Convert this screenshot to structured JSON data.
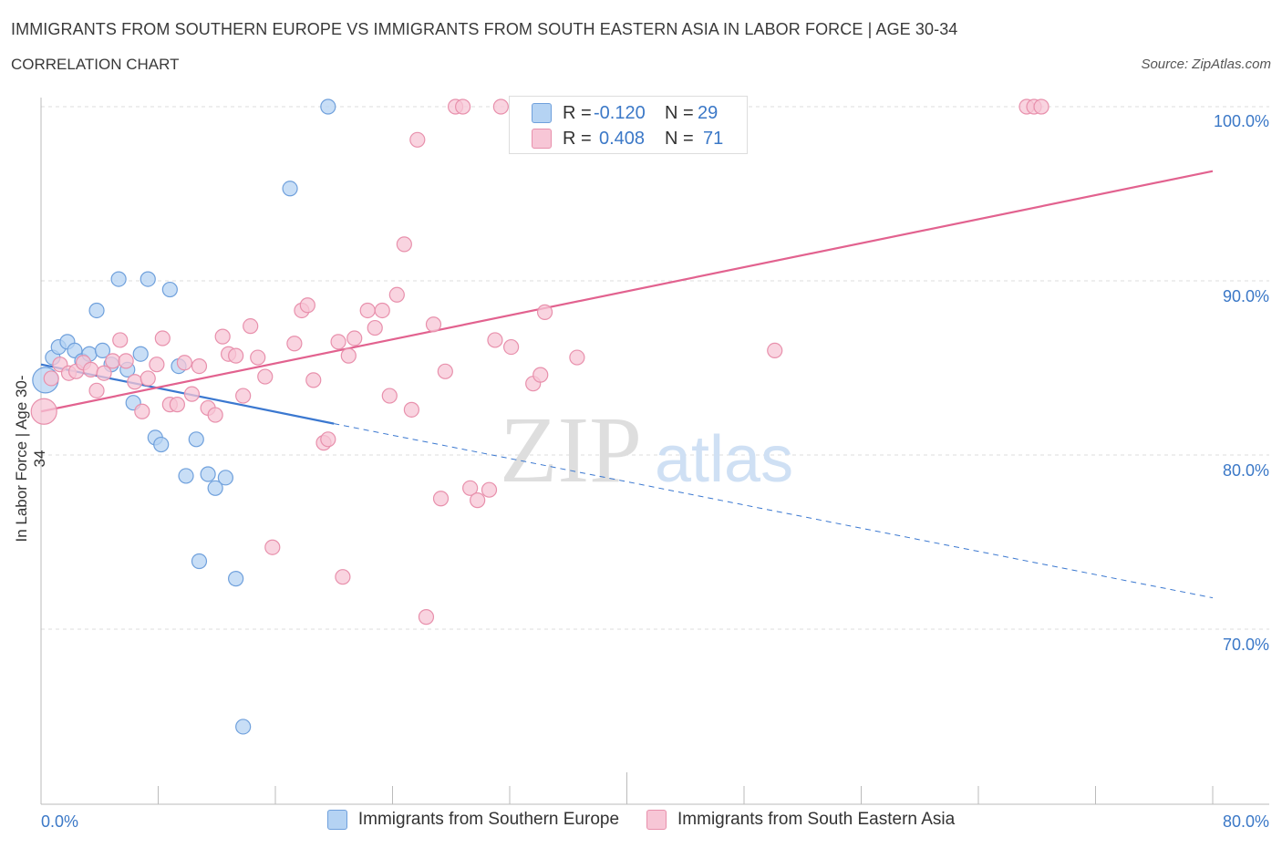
{
  "title": "IMMIGRANTS FROM SOUTHERN EUROPE VS IMMIGRANTS FROM SOUTH EASTERN ASIA IN LABOR FORCE | AGE 30-34",
  "subtitle": "CORRELATION CHART",
  "source": "Source: ZipAtlas.com",
  "watermark": {
    "zip": "ZIP",
    "atlas": "atlas"
  },
  "colors": {
    "blue_fill": "#b5d3f3",
    "blue_stroke": "#6fa0dc",
    "blue_line": "#3b78d0",
    "pink_fill": "#f7c6d6",
    "pink_stroke": "#e890ac",
    "pink_line": "#e2628f",
    "axis_text": "#3b78c7",
    "grid": "#dddddd"
  },
  "legend": {
    "r_label": "R =",
    "n_label": "N =",
    "blue": {
      "r": "-0.120",
      "n": "29"
    },
    "pink": {
      "r": "0.408",
      "n": "71"
    }
  },
  "bottom_legend": {
    "blue": "Immigrants from Southern Europe",
    "pink": "Immigrants from South Eastern Asia"
  },
  "chart_data": {
    "type": "scatter",
    "xlabel": "",
    "ylabel": "In Labor Force | Age 30-34",
    "x_tick_labels": [
      "0.0%",
      "80.0%"
    ],
    "y_tick_labels": [
      "100.0%",
      "90.0%",
      "80.0%",
      "70.0%"
    ],
    "xlim": [
      0,
      80
    ],
    "ylim": [
      60.5,
      101
    ],
    "y_ticks": [
      100,
      90,
      80,
      70
    ],
    "series": [
      {
        "name": "Immigrants from Southern Europe",
        "color": "blue",
        "trend": {
          "x0": 0,
          "y0": 85.2,
          "x1": 20,
          "y1": 81.8,
          "dash_to_x": 80,
          "dash_to_y": 71.8
        },
        "points": [
          [
            0.3,
            84.3
          ],
          [
            0.8,
            85.6
          ],
          [
            1.2,
            86.2
          ],
          [
            1.8,
            86.5
          ],
          [
            2.3,
            86.0
          ],
          [
            2.8,
            85.4
          ],
          [
            3.3,
            85.8
          ],
          [
            3.8,
            88.3
          ],
          [
            4.2,
            86.0
          ],
          [
            4.8,
            85.2
          ],
          [
            5.3,
            90.1
          ],
          [
            5.9,
            84.9
          ],
          [
            6.3,
            83.0
          ],
          [
            6.8,
            85.8
          ],
          [
            7.3,
            90.1
          ],
          [
            7.8,
            81.0
          ],
          [
            8.2,
            80.6
          ],
          [
            8.8,
            89.5
          ],
          [
            9.4,
            85.1
          ],
          [
            9.9,
            78.8
          ],
          [
            10.6,
            80.9
          ],
          [
            10.8,
            73.9
          ],
          [
            11.4,
            78.9
          ],
          [
            11.9,
            78.1
          ],
          [
            12.6,
            78.7
          ],
          [
            13.3,
            72.9
          ],
          [
            13.8,
            64.4
          ],
          [
            17.0,
            95.3
          ],
          [
            19.6,
            100.0
          ]
        ]
      },
      {
        "name": "Immigrants from South Eastern Asia",
        "color": "pink",
        "trend": {
          "x0": 0,
          "y0": 82.5,
          "x1": 80,
          "y1": 96.3
        },
        "points": [
          [
            0.2,
            82.5
          ],
          [
            0.7,
            84.4
          ],
          [
            1.3,
            85.2
          ],
          [
            1.9,
            84.7
          ],
          [
            2.4,
            84.8
          ],
          [
            2.9,
            85.3
          ],
          [
            3.4,
            84.9
          ],
          [
            3.8,
            83.7
          ],
          [
            4.3,
            84.7
          ],
          [
            4.9,
            85.4
          ],
          [
            5.4,
            86.6
          ],
          [
            5.8,
            85.4
          ],
          [
            6.4,
            84.2
          ],
          [
            6.9,
            82.5
          ],
          [
            7.3,
            84.4
          ],
          [
            7.9,
            85.2
          ],
          [
            8.3,
            86.7
          ],
          [
            8.8,
            82.9
          ],
          [
            9.3,
            82.9
          ],
          [
            9.8,
            85.3
          ],
          [
            10.3,
            83.5
          ],
          [
            10.8,
            85.1
          ],
          [
            11.4,
            82.7
          ],
          [
            11.9,
            82.3
          ],
          [
            12.4,
            86.8
          ],
          [
            12.8,
            85.8
          ],
          [
            13.3,
            85.7
          ],
          [
            13.8,
            83.4
          ],
          [
            14.3,
            87.4
          ],
          [
            14.8,
            85.6
          ],
          [
            15.3,
            84.5
          ],
          [
            15.8,
            74.7
          ],
          [
            17.3,
            86.4
          ],
          [
            17.8,
            88.3
          ],
          [
            18.2,
            88.6
          ],
          [
            18.6,
            84.3
          ],
          [
            19.3,
            80.7
          ],
          [
            19.6,
            80.9
          ],
          [
            20.3,
            86.5
          ],
          [
            20.6,
            73.0
          ],
          [
            21.0,
            85.7
          ],
          [
            21.4,
            86.7
          ],
          [
            22.3,
            88.3
          ],
          [
            22.8,
            87.3
          ],
          [
            23.3,
            88.3
          ],
          [
            23.8,
            83.4
          ],
          [
            24.3,
            89.2
          ],
          [
            24.8,
            92.1
          ],
          [
            25.3,
            82.6
          ],
          [
            25.7,
            98.1
          ],
          [
            26.3,
            70.7
          ],
          [
            26.8,
            87.5
          ],
          [
            27.3,
            77.5
          ],
          [
            27.6,
            84.8
          ],
          [
            28.3,
            100.0
          ],
          [
            28.8,
            100.0
          ],
          [
            29.3,
            78.1
          ],
          [
            29.8,
            77.4
          ],
          [
            30.6,
            78.0
          ],
          [
            31.0,
            86.6
          ],
          [
            31.4,
            100.0
          ],
          [
            32.1,
            86.2
          ],
          [
            33.6,
            84.1
          ],
          [
            34.1,
            84.6
          ],
          [
            34.4,
            88.2
          ],
          [
            36.6,
            85.6
          ],
          [
            43.0,
            100.0
          ],
          [
            50.1,
            86.0
          ],
          [
            67.3,
            100.0
          ],
          [
            67.8,
            100.0
          ],
          [
            68.3,
            100.0
          ]
        ]
      }
    ]
  }
}
